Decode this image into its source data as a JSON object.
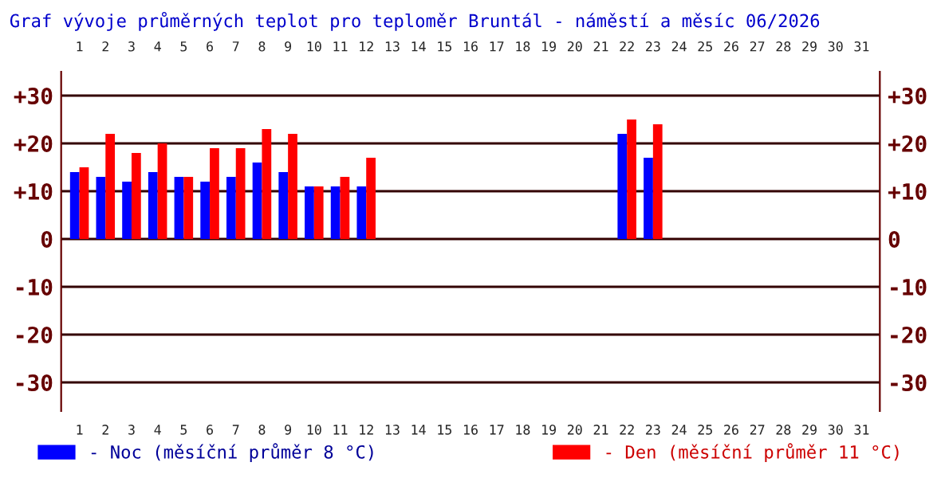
{
  "chart_data": {
    "type": "bar",
    "title": "Graf vývoje průměrných teplot pro teploměr Bruntál - náměstí a měsíc 06/2026",
    "categories": [
      "1",
      "2",
      "3",
      "4",
      "5",
      "6",
      "7",
      "8",
      "9",
      "10",
      "11",
      "12",
      "13",
      "14",
      "15",
      "16",
      "17",
      "18",
      "19",
      "20",
      "21",
      "22",
      "23",
      "24",
      "25",
      "26",
      "27",
      "28",
      "29",
      "30",
      "31"
    ],
    "series": [
      {
        "name": "- Noc (měsíční průměr 8 °C)",
        "color": "#0000ff",
        "values": [
          14,
          13,
          12,
          14,
          13,
          12,
          13,
          16,
          14,
          11,
          11,
          11,
          null,
          null,
          null,
          null,
          null,
          null,
          null,
          null,
          null,
          22,
          17,
          null,
          null,
          null,
          null,
          null,
          null,
          null,
          null
        ]
      },
      {
        "name": "- Den (měsíční průměr 11 °C)",
        "color": "#ff0000",
        "values": [
          15,
          22,
          18,
          20,
          13,
          19,
          19,
          23,
          22,
          11,
          13,
          17,
          null,
          null,
          null,
          null,
          null,
          null,
          null,
          null,
          null,
          25,
          24,
          null,
          null,
          null,
          null,
          null,
          null,
          null,
          null
        ]
      }
    ],
    "ylim": [
      -36,
      35
    ],
    "yticks": [
      {
        "value": -30,
        "label": "-30"
      },
      {
        "value": -20,
        "label": "-20"
      },
      {
        "value": -10,
        "label": "-10"
      },
      {
        "value": 0,
        "label": "0"
      },
      {
        "value": 10,
        "label": "+10"
      },
      {
        "value": 20,
        "label": "+20"
      },
      {
        "value": 30,
        "label": "+30"
      }
    ],
    "y2lim": [
      -36,
      35
    ],
    "y2ticks": [
      {
        "value": -30,
        "label": "-30"
      },
      {
        "value": -20,
        "label": "-20"
      },
      {
        "value": -10,
        "label": "-10"
      },
      {
        "value": 0,
        "label": "0"
      },
      {
        "value": 10,
        "label": "+10"
      },
      {
        "value": 20,
        "label": "+20"
      },
      {
        "value": 30,
        "label": "+30"
      }
    ],
    "grid": "y",
    "legend": "bottom"
  }
}
